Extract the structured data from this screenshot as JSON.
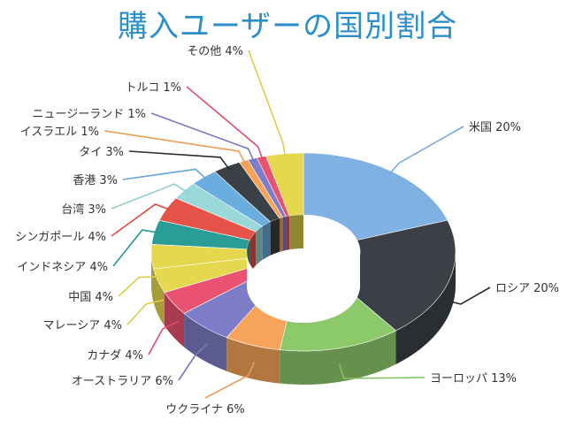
{
  "title": "購入ユーザーの国別割合",
  "chart_data": {
    "type": "pie",
    "variant": "3d-donut",
    "title": "購入ユーザーの国別割合",
    "slices": [
      {
        "label": "米国 20%",
        "name": "米国",
        "value": 20,
        "color": "#7fb1e3"
      },
      {
        "label": "ロシア 20%",
        "name": "ロシア",
        "value": 20,
        "color": "#3b3f46"
      },
      {
        "label": "ヨーロッパ 13%",
        "name": "ヨーロッパ",
        "value": 13,
        "color": "#8cc96a"
      },
      {
        "label": "ウクライナ 6%",
        "name": "ウクライナ",
        "value": 6,
        "color": "#f7a45a"
      },
      {
        "label": "オーストラリア 6%",
        "name": "オーストラリア",
        "value": 6,
        "color": "#7e7ec8"
      },
      {
        "label": "カナダ 4%",
        "name": "カナダ",
        "value": 4,
        "color": "#ea5271"
      },
      {
        "label": "マレーシア 4%",
        "name": "マレーシア",
        "value": 4,
        "color": "#e6d84e"
      },
      {
        "label": "中国 4%",
        "name": "中国",
        "value": 4,
        "color": "#e6d84e"
      },
      {
        "label": "インドネシア 4%",
        "name": "インドネシア",
        "value": 4,
        "color": "#2a9d96"
      },
      {
        "label": "シンガポール 4%",
        "name": "シンガポール",
        "value": 4,
        "color": "#e65348"
      },
      {
        "label": "台湾 3%",
        "name": "台湾",
        "value": 3,
        "color": "#9ad9da"
      },
      {
        "label": "香港 3%",
        "name": "香港",
        "value": 3,
        "color": "#6aaedf"
      },
      {
        "label": "タイ 3%",
        "name": "タイ",
        "value": 3,
        "color": "#3b3f46"
      },
      {
        "label": "イスラエル 1%",
        "name": "イスラエル",
        "value": 1,
        "color": "#f7a45a"
      },
      {
        "label": "ニュージーランド 1%",
        "name": "ニュージーランド",
        "value": 1,
        "color": "#7e7ec8"
      },
      {
        "label": "トルコ 1%",
        "name": "トルコ",
        "value": 1,
        "color": "#ea5271"
      },
      {
        "label": "その他 4%",
        "name": "その他",
        "value": 4,
        "color": "#e6d84e"
      }
    ]
  }
}
